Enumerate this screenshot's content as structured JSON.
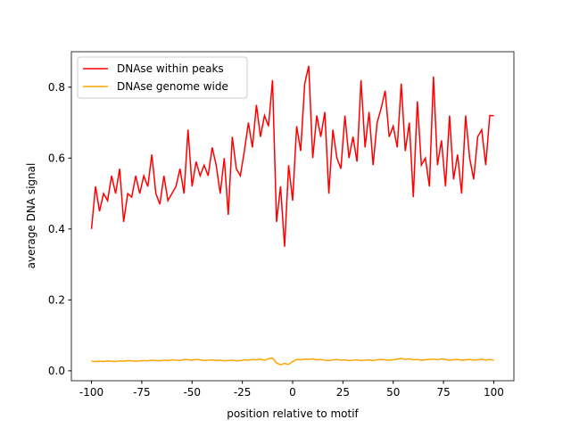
{
  "chart_data": {
    "type": "line",
    "xlabel": "position relative to motif",
    "ylabel": "average DNA signal",
    "x": [
      -100,
      -98,
      -96,
      -94,
      -92,
      -90,
      -88,
      -86,
      -84,
      -82,
      -80,
      -78,
      -76,
      -74,
      -72,
      -70,
      -68,
      -66,
      -64,
      -62,
      -60,
      -58,
      -56,
      -54,
      -52,
      -50,
      -48,
      -46,
      -44,
      -42,
      -40,
      -38,
      -36,
      -34,
      -32,
      -30,
      -28,
      -26,
      -24,
      -22,
      -20,
      -18,
      -16,
      -14,
      -12,
      -10,
      -8,
      -6,
      -4,
      -2,
      0,
      2,
      4,
      6,
      8,
      10,
      12,
      14,
      16,
      18,
      20,
      22,
      24,
      26,
      28,
      30,
      32,
      34,
      36,
      38,
      40,
      42,
      44,
      46,
      48,
      50,
      52,
      54,
      56,
      58,
      60,
      62,
      64,
      66,
      68,
      70,
      72,
      74,
      76,
      78,
      80,
      82,
      84,
      86,
      88,
      90,
      92,
      94,
      96,
      98,
      100
    ],
    "series": [
      {
        "name": "DNAse within peaks",
        "color": "#ff0000",
        "values": [
          0.4,
          0.52,
          0.45,
          0.5,
          0.48,
          0.55,
          0.5,
          0.57,
          0.42,
          0.5,
          0.49,
          0.55,
          0.5,
          0.55,
          0.52,
          0.61,
          0.5,
          0.47,
          0.55,
          0.48,
          0.5,
          0.52,
          0.57,
          0.5,
          0.68,
          0.52,
          0.59,
          0.55,
          0.58,
          0.55,
          0.63,
          0.58,
          0.5,
          0.6,
          0.44,
          0.66,
          0.57,
          0.55,
          0.62,
          0.7,
          0.63,
          0.75,
          0.66,
          0.72,
          0.69,
          0.82,
          0.42,
          0.52,
          0.35,
          0.58,
          0.48,
          0.69,
          0.62,
          0.81,
          0.86,
          0.6,
          0.72,
          0.66,
          0.73,
          0.5,
          0.68,
          0.6,
          0.57,
          0.72,
          0.6,
          0.66,
          0.59,
          0.82,
          0.63,
          0.73,
          0.58,
          0.7,
          0.74,
          0.79,
          0.66,
          0.69,
          0.63,
          0.81,
          0.62,
          0.7,
          0.49,
          0.76,
          0.58,
          0.6,
          0.52,
          0.83,
          0.58,
          0.65,
          0.52,
          0.72,
          0.54,
          0.61,
          0.5,
          0.72,
          0.6,
          0.54,
          0.66,
          0.68,
          0.58,
          0.72,
          0.72
        ]
      },
      {
        "name": "DNAse genome wide",
        "color": "#ffa500",
        "values": [
          0.027,
          0.026,
          0.027,
          0.026,
          0.028,
          0.027,
          0.026,
          0.028,
          0.027,
          0.029,
          0.028,
          0.027,
          0.028,
          0.029,
          0.028,
          0.03,
          0.029,
          0.028,
          0.03,
          0.029,
          0.031,
          0.03,
          0.029,
          0.032,
          0.031,
          0.03,
          0.032,
          0.031,
          0.029,
          0.03,
          0.031,
          0.029,
          0.03,
          0.028,
          0.029,
          0.03,
          0.028,
          0.029,
          0.031,
          0.03,
          0.032,
          0.031,
          0.033,
          0.03,
          0.034,
          0.036,
          0.022,
          0.017,
          0.021,
          0.018,
          0.026,
          0.032,
          0.031,
          0.033,
          0.032,
          0.034,
          0.031,
          0.032,
          0.03,
          0.029,
          0.031,
          0.032,
          0.03,
          0.031,
          0.029,
          0.03,
          0.031,
          0.029,
          0.03,
          0.031,
          0.029,
          0.031,
          0.032,
          0.031,
          0.03,
          0.031,
          0.033,
          0.035,
          0.032,
          0.034,
          0.031,
          0.032,
          0.03,
          0.031,
          0.032,
          0.033,
          0.031,
          0.034,
          0.032,
          0.03,
          0.031,
          0.032,
          0.03,
          0.031,
          0.032,
          0.03,
          0.031,
          0.033,
          0.03,
          0.032,
          0.03
        ]
      }
    ],
    "xlim": [
      -110,
      110
    ],
    "ylim": [
      -0.028,
      0.9
    ],
    "xticks": [
      -100,
      -75,
      -50,
      -25,
      0,
      25,
      50,
      75,
      100
    ],
    "yticks": [
      {
        "value": 0,
        "label": "0.0"
      },
      0.2,
      0.4,
      0.6,
      0.8
    ],
    "legend": "upper left"
  }
}
